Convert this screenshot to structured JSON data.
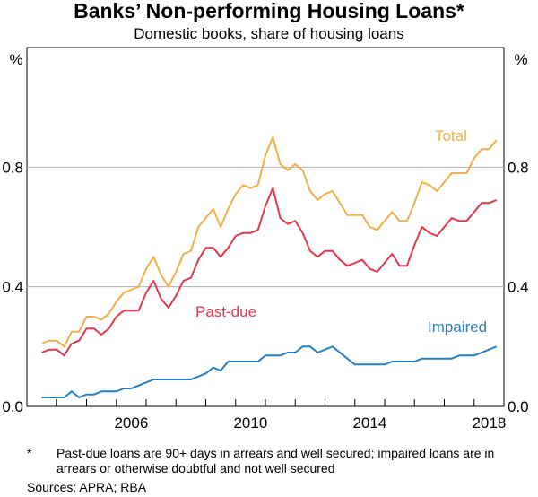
{
  "title": "Banks’ Non-performing Housing Loans*",
  "subtitle": "Domestic books, share of housing loans",
  "unit_left": "%",
  "unit_right": "%",
  "footnote_mark": "*",
  "footnote_text": "Past-due loans are 90+ days in arrears and well secured; impaired loans are in arrears or otherwise doubtful and not well secured",
  "sources": "Sources: APRA; RBA",
  "colors": {
    "total": "#f0b04a",
    "past_due": "#e0384e",
    "impaired": "#2a7fc1",
    "grid": "#b0b0b0",
    "axis": "#000000"
  },
  "chart_data": {
    "type": "line",
    "title": "Banks’ Non-performing Housing Loans*",
    "subtitle": "Domestic books, share of housing loans",
    "xlabel": "",
    "ylabel": "%",
    "xlim": [
      2003.0,
      2019.0
    ],
    "ylim": [
      0.0,
      1.2
    ],
    "x_ticks": [
      2006,
      2010,
      2014,
      2018
    ],
    "y_ticks": [
      0.0,
      0.4,
      0.8
    ],
    "y_tick_labels": [
      "0.0",
      "0.4",
      "0.8"
    ],
    "grid": true,
    "x": [
      2003.5,
      2003.75,
      2004.0,
      2004.25,
      2004.5,
      2004.75,
      2005.0,
      2005.25,
      2005.5,
      2005.75,
      2006.0,
      2006.25,
      2006.5,
      2006.75,
      2007.0,
      2007.25,
      2007.5,
      2007.75,
      2008.0,
      2008.25,
      2008.5,
      2008.75,
      2009.0,
      2009.25,
      2009.5,
      2009.75,
      2010.0,
      2010.25,
      2010.5,
      2010.75,
      2011.0,
      2011.25,
      2011.5,
      2011.75,
      2012.0,
      2012.25,
      2012.5,
      2012.75,
      2013.0,
      2013.25,
      2013.5,
      2013.75,
      2014.0,
      2014.25,
      2014.5,
      2014.75,
      2015.0,
      2015.25,
      2015.5,
      2015.75,
      2016.0,
      2016.25,
      2016.5,
      2016.75,
      2017.0,
      2017.25,
      2017.5,
      2017.75,
      2018.0,
      2018.25,
      2018.5,
      2018.75
    ],
    "series": [
      {
        "name": "Total",
        "label_value": "Total",
        "values": [
          0.21,
          0.22,
          0.22,
          0.2,
          0.25,
          0.25,
          0.3,
          0.3,
          0.29,
          0.31,
          0.35,
          0.38,
          0.39,
          0.4,
          0.46,
          0.5,
          0.44,
          0.4,
          0.45,
          0.51,
          0.52,
          0.6,
          0.63,
          0.66,
          0.6,
          0.66,
          0.71,
          0.74,
          0.73,
          0.74,
          0.84,
          0.9,
          0.81,
          0.79,
          0.81,
          0.79,
          0.72,
          0.69,
          0.71,
          0.72,
          0.68,
          0.64,
          0.64,
          0.64,
          0.6,
          0.59,
          0.62,
          0.65,
          0.62,
          0.62,
          0.68,
          0.75,
          0.74,
          0.72,
          0.75,
          0.78,
          0.78,
          0.78,
          0.83,
          0.86,
          0.86,
          0.89
        ]
      },
      {
        "name": "Past-due",
        "label_value": "Past-due",
        "values": [
          0.18,
          0.19,
          0.19,
          0.17,
          0.21,
          0.22,
          0.26,
          0.26,
          0.24,
          0.26,
          0.3,
          0.32,
          0.32,
          0.32,
          0.38,
          0.42,
          0.36,
          0.33,
          0.37,
          0.42,
          0.43,
          0.49,
          0.53,
          0.53,
          0.5,
          0.53,
          0.57,
          0.58,
          0.58,
          0.59,
          0.67,
          0.73,
          0.63,
          0.61,
          0.62,
          0.58,
          0.52,
          0.5,
          0.52,
          0.52,
          0.49,
          0.47,
          0.48,
          0.49,
          0.46,
          0.45,
          0.48,
          0.51,
          0.47,
          0.47,
          0.54,
          0.6,
          0.58,
          0.57,
          0.6,
          0.63,
          0.62,
          0.62,
          0.65,
          0.68,
          0.68,
          0.69
        ]
      },
      {
        "name": "Impaired",
        "label_value": "Impaired",
        "values": [
          0.03,
          0.03,
          0.03,
          0.03,
          0.05,
          0.03,
          0.04,
          0.04,
          0.05,
          0.05,
          0.05,
          0.06,
          0.06,
          0.07,
          0.08,
          0.09,
          0.09,
          0.09,
          0.09,
          0.09,
          0.09,
          0.1,
          0.11,
          0.13,
          0.12,
          0.15,
          0.15,
          0.15,
          0.15,
          0.15,
          0.17,
          0.17,
          0.17,
          0.18,
          0.18,
          0.2,
          0.2,
          0.18,
          0.19,
          0.2,
          0.18,
          0.16,
          0.14,
          0.14,
          0.14,
          0.14,
          0.14,
          0.15,
          0.15,
          0.15,
          0.15,
          0.16,
          0.16,
          0.16,
          0.16,
          0.16,
          0.17,
          0.17,
          0.17,
          0.18,
          0.19,
          0.2
        ]
      }
    ]
  }
}
